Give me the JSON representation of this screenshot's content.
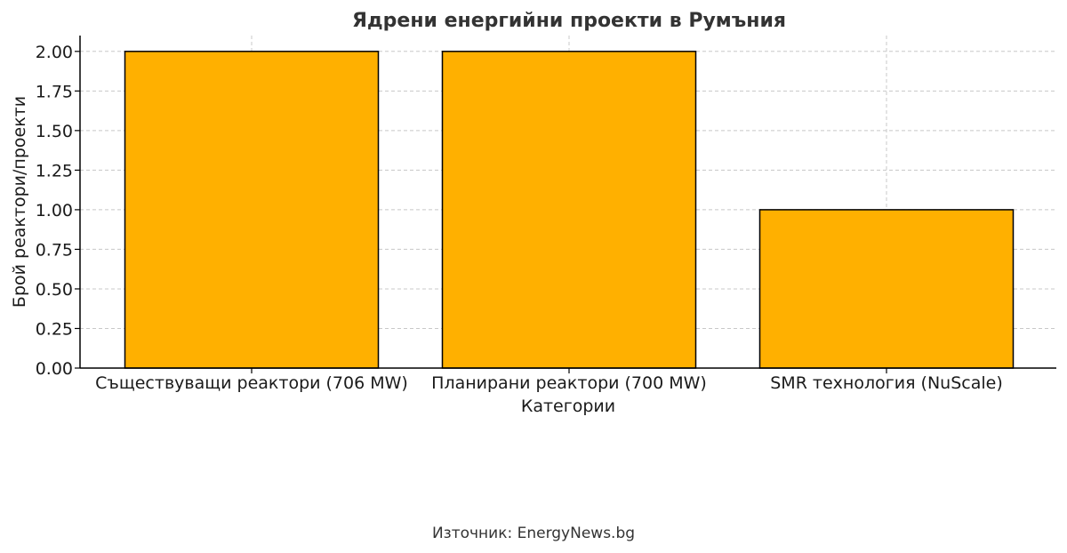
{
  "source_note": "Източник: EnergyNews.bg",
  "colors": {
    "bar": "#FFB000",
    "bar_edge": "#000000",
    "grid": "#c8c8c8",
    "axis": "#000000",
    "title": "#333333"
  },
  "chart_data": {
    "type": "bar",
    "title": "Ядрени енергийни проекти в Румъния",
    "xlabel": "Категории",
    "ylabel": "Брой реактори/проекти",
    "categories": [
      "Съществуващи реактори (706 MW)",
      "Планирани реактори (700 MW)",
      "SMR технология (NuScale)"
    ],
    "values": [
      2,
      2,
      1
    ],
    "ylim": [
      0,
      2.1
    ],
    "yticks": [
      "0.00",
      "0.25",
      "0.50",
      "0.75",
      "1.00",
      "1.25",
      "1.50",
      "1.75",
      "2.00"
    ],
    "grid": true,
    "grid_style": "dashed"
  }
}
